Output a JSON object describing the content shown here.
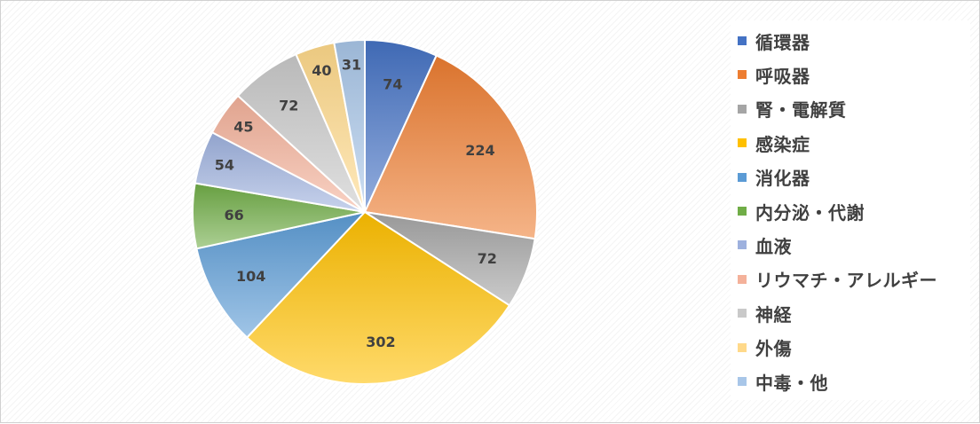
{
  "chart_data": {
    "type": "pie",
    "title": "",
    "grid": false,
    "legend_position": "right",
    "labels": [
      "循環器",
      "呼吸器",
      "腎・電解質",
      "感染症",
      "消化器",
      "内分泌・代謝",
      "血液",
      "リウマチ・アレルギー",
      "神経",
      "外傷",
      "中毒・他"
    ],
    "values": [
      74,
      224,
      72,
      302,
      104,
      66,
      54,
      45,
      72,
      40,
      31
    ],
    "colors": [
      "#4472c4",
      "#ed7d31",
      "#a5a5a5",
      "#ffc000",
      "#5b9bd5",
      "#70ad47",
      "#9eb1de",
      "#f4b19a",
      "#c9c9c9",
      "#ffd98a",
      "#a8c6e8"
    ],
    "start_angle_deg": 0,
    "direction": "clockwise"
  }
}
